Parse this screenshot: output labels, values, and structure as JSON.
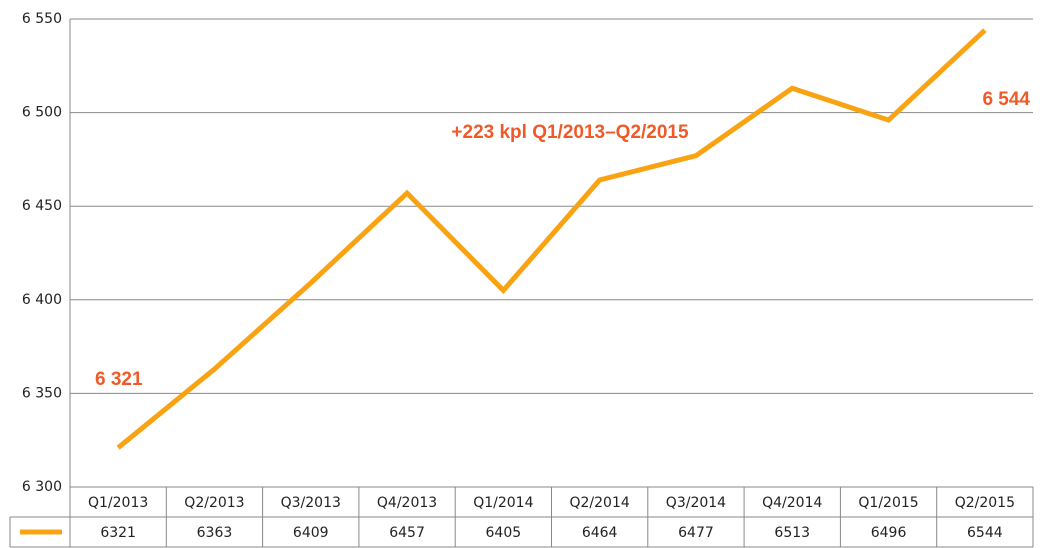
{
  "chart_data": {
    "type": "line",
    "categories": [
      "Q1/2013",
      "Q2/2013",
      "Q3/2013",
      "Q4/2013",
      "Q1/2014",
      "Q2/2014",
      "Q3/2014",
      "Q4/2014",
      "Q1/2015",
      "Q2/2015"
    ],
    "values": [
      6321,
      6363,
      6409,
      6457,
      6405,
      6464,
      6477,
      6513,
      6496,
      6544
    ],
    "color": "#f9a313",
    "ylim": [
      6300,
      6550
    ],
    "yticks": [
      {
        "value": 6300,
        "label": "6 300"
      },
      {
        "value": 6350,
        "label": "6 350"
      },
      {
        "value": 6400,
        "label": "6 400"
      },
      {
        "value": 6450,
        "label": "6 450"
      },
      {
        "value": 6500,
        "label": "6 500"
      },
      {
        "value": 6550,
        "label": "6 550"
      }
    ],
    "grid": true,
    "data_table": true,
    "annotations": [
      {
        "text": "6 321",
        "color": "#f05a28"
      },
      {
        "text": "+223 kpl Q1/2013–Q2/2015",
        "color": "#f05a28"
      },
      {
        "text": "6 544",
        "color": "#f05a28"
      }
    ]
  }
}
